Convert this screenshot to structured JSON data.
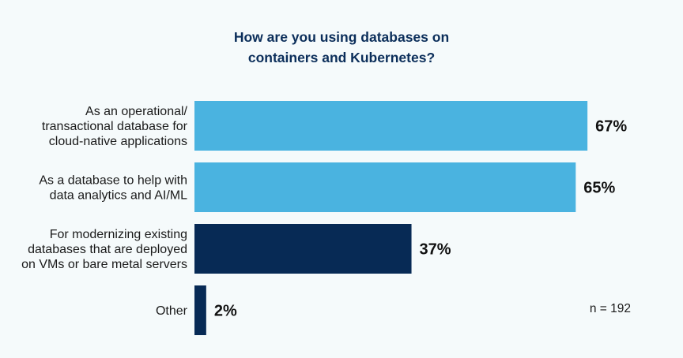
{
  "chart_data": {
    "type": "bar",
    "orientation": "horizontal",
    "title_lines": [
      "How are you using databases on",
      "containers and Kubernetes?"
    ],
    "categories": [
      [
        "As an operational/",
        "transactional database for",
        "cloud-native applications"
      ],
      [
        "As a database to help with",
        "data analytics and AI/ML"
      ],
      [
        "For modernizing existing",
        "databases that are deployed",
        "on VMs or bare metal servers"
      ],
      [
        "Other"
      ]
    ],
    "values": [
      67,
      65,
      37,
      2
    ],
    "value_labels": [
      "67%",
      "65%",
      "37%",
      "2%"
    ],
    "bar_colors": [
      "#4ab3e0",
      "#4ab3e0",
      "#072a55",
      "#072a55"
    ],
    "xlim": [
      0,
      100
    ],
    "grid": false,
    "legend": "none",
    "annotation": "n = 192"
  }
}
